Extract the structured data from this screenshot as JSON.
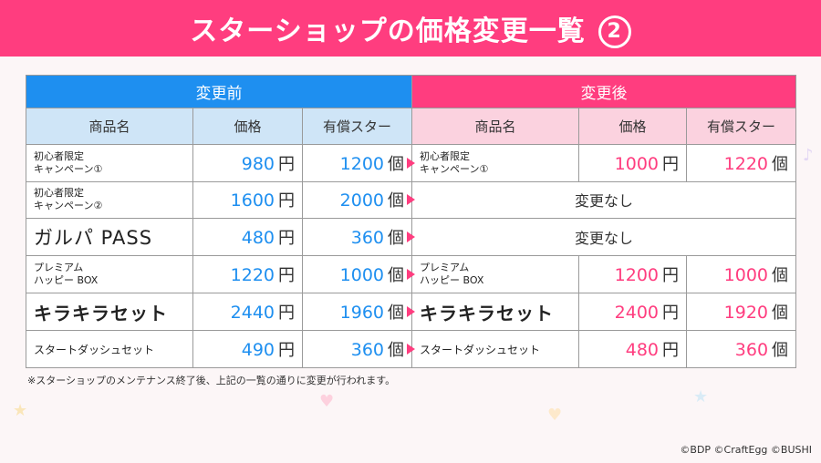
{
  "header": {
    "title": "スターショップの価格変更一覧",
    "number": "2"
  },
  "groups": {
    "before": "変更前",
    "after": "変更後"
  },
  "columns": {
    "name": "商品名",
    "price": "価格",
    "stars": "有償スター"
  },
  "units": {
    "yen": "円",
    "count": "個"
  },
  "rows": [
    {
      "name_l1": "初心者限定",
      "name_l2": "キャンペーン①",
      "before_price": "980",
      "before_stars": "1200",
      "after_l1": "初心者限定",
      "after_l2": "キャンペーン①",
      "after_price": "1000",
      "after_stars": "1220"
    },
    {
      "name_l1": "初心者限定",
      "name_l2": "キャンペーン②",
      "before_price": "1600",
      "before_stars": "2000",
      "no_change": "変更なし"
    },
    {
      "name": "ガルパ PASS",
      "before_price": "480",
      "before_stars": "360",
      "no_change": "変更なし"
    },
    {
      "name_l1": "プレミアム",
      "name_l2": "ハッピー BOX",
      "before_price": "1220",
      "before_stars": "1000",
      "after_l1": "プレミアム",
      "after_l2": "ハッピー BOX",
      "after_price": "1200",
      "after_stars": "1000"
    },
    {
      "name": "キラキラセット",
      "before_price": "2440",
      "before_stars": "1960",
      "after_name": "キラキラセット",
      "after_price": "2400",
      "after_stars": "1920"
    },
    {
      "name": "スタートダッシュセット",
      "before_price": "490",
      "before_stars": "360",
      "after_name": "スタートダッシュセット",
      "after_price": "480",
      "after_stars": "360"
    }
  ],
  "note": "※スターショップのメンテナンス終了後、上記の一覧の通りに変更が行われます。",
  "copyright": "©BDP ©CraftEgg ©BUSHI",
  "colors": {
    "header": "#ff3d7f",
    "before_accent": "#1e8ff0",
    "after_accent": "#ff3d7f",
    "before_header_bg": "#cfe5f7",
    "after_header_bg": "#fbd2df"
  }
}
